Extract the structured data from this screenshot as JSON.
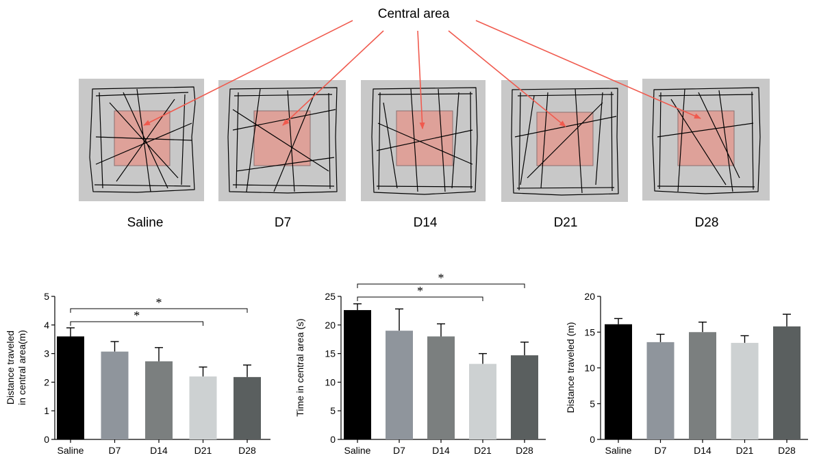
{
  "figure": {
    "pointer_label": "Central area",
    "panels": [
      {
        "label": "Saline"
      },
      {
        "label": "D7"
      },
      {
        "label": "D14"
      },
      {
        "label": "D21"
      },
      {
        "label": "D28"
      }
    ],
    "colors": {
      "arena": "#c8c8c8",
      "central_area": "#e6948a",
      "pointer": "#f05a4e"
    }
  },
  "chart_data": [
    {
      "type": "bar",
      "title": "",
      "xlabel": "",
      "ylabel": "Distance traveled in central area(m)",
      "ylabel_lines": [
        "Distance traveled",
        "in central area(m)"
      ],
      "categories": [
        "Saline",
        "D7",
        "D14",
        "D21",
        "D28"
      ],
      "values": [
        3.6,
        3.07,
        2.73,
        2.2,
        2.18
      ],
      "errors": [
        0.3,
        0.35,
        0.48,
        0.33,
        0.42
      ],
      "colors": [
        "#000000",
        "#8f959c",
        "#7b7f7f",
        "#cdd1d2",
        "#5a5f5f"
      ],
      "ylim": [
        0,
        5
      ],
      "yticks": [
        0,
        1,
        2,
        3,
        4,
        5
      ],
      "significance": [
        {
          "from": "Saline",
          "to": "D21",
          "label": "*"
        },
        {
          "from": "Saline",
          "to": "D28",
          "label": "*"
        }
      ]
    },
    {
      "type": "bar",
      "title": "",
      "xlabel": "",
      "ylabel": "Time in central area (s)",
      "categories": [
        "Saline",
        "D7",
        "D14",
        "D21",
        "D28"
      ],
      "values": [
        22.6,
        19.0,
        18.0,
        13.2,
        14.7
      ],
      "errors": [
        1.1,
        3.8,
        2.2,
        1.8,
        2.3
      ],
      "colors": [
        "#000000",
        "#8f959c",
        "#7b7f7f",
        "#cdd1d2",
        "#5a5f5f"
      ],
      "ylim": [
        0,
        25
      ],
      "yticks": [
        0,
        5,
        10,
        15,
        20,
        25
      ],
      "significance": [
        {
          "from": "Saline",
          "to": "D21",
          "label": "*"
        },
        {
          "from": "Saline",
          "to": "D28",
          "label": "*"
        }
      ]
    },
    {
      "type": "bar",
      "title": "",
      "xlabel": "",
      "ylabel": "Distance traveled (m)",
      "categories": [
        "Saline",
        "D7",
        "D14",
        "D21",
        "D28"
      ],
      "values": [
        16.1,
        13.6,
        15.0,
        13.5,
        15.8
      ],
      "errors": [
        0.8,
        1.1,
        1.4,
        1.0,
        1.7
      ],
      "colors": [
        "#000000",
        "#8f959c",
        "#7b7f7f",
        "#cdd1d2",
        "#5a5f5f"
      ],
      "ylim": [
        0,
        20
      ],
      "yticks": [
        0,
        5,
        10,
        15,
        20
      ],
      "significance": []
    }
  ]
}
